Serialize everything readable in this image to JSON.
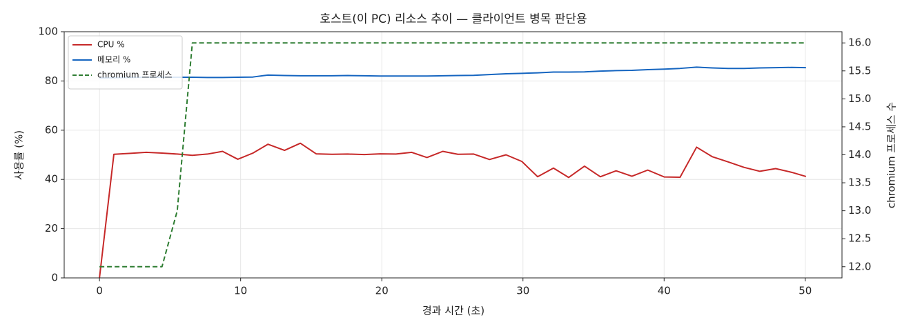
{
  "chart_data": {
    "type": "line",
    "title": "호스트(이 PC) 리소스 추이 — 클라이언트 병목 판단용",
    "xlabel": "경과 시간 (초)",
    "ylabel": "사용률 (%)",
    "y2label": "chromium 프로세스 수",
    "x": [
      0,
      1.02,
      2.19,
      3.31,
      4.43,
      5.51,
      6.58,
      7.65,
      8.72,
      9.8,
      10.87,
      11.94,
      13.11,
      14.23,
      15.35,
      16.47,
      17.59,
      18.76,
      19.88,
      21.0,
      22.12,
      23.2,
      24.32,
      25.39,
      26.51,
      27.63,
      28.8,
      29.92,
      31.04,
      32.16,
      33.24,
      34.36,
      35.48,
      36.6,
      37.72,
      38.84,
      40.01,
      41.13,
      42.3,
      43.42,
      44.54,
      45.66,
      46.78,
      47.9,
      49.03,
      50.05
    ],
    "series": [
      {
        "name": "CPU %",
        "color": "#c62828",
        "values": [
          0,
          50.2,
          50.6,
          51.0,
          50.7,
          50.3,
          49.8,
          50.3,
          51.4,
          48.2,
          50.7,
          54.3,
          51.8,
          54.7,
          50.4,
          50.2,
          50.3,
          50.1,
          50.4,
          50.3,
          51.0,
          48.9,
          51.4,
          50.2,
          50.3,
          48.1,
          50.0,
          47.3,
          41.1,
          44.6,
          40.8,
          45.4,
          41.1,
          43.5,
          41.3,
          43.8,
          41.0,
          40.9,
          53.1,
          49.2,
          47.1,
          44.9,
          43.3,
          44.4,
          42.9,
          41.2
        ]
      },
      {
        "name": "메모리 %",
        "color": "#1565c0",
        "values": [
          81.2,
          81.3,
          81.4,
          81.5,
          81.5,
          81.5,
          81.5,
          81.4,
          81.4,
          81.5,
          81.6,
          82.4,
          82.2,
          82.1,
          82.1,
          82.1,
          82.2,
          82.1,
          82.0,
          82.0,
          82.0,
          82.0,
          82.1,
          82.2,
          82.3,
          82.6,
          82.9,
          83.1,
          83.3,
          83.6,
          83.6,
          83.7,
          84.0,
          84.2,
          84.3,
          84.6,
          84.8,
          85.1,
          85.6,
          85.3,
          85.1,
          85.1,
          85.3,
          85.4,
          85.5,
          85.4
        ]
      },
      {
        "name": "chromium 프로세스",
        "color": "#2e7d32",
        "dashed": true,
        "axis": "y2",
        "values": [
          12,
          12,
          12,
          12,
          12,
          13,
          16,
          16,
          16,
          16,
          16,
          16,
          16,
          16,
          16,
          16,
          16,
          16,
          16,
          16,
          16,
          16,
          16,
          16,
          16,
          16,
          16,
          16,
          16,
          16,
          16,
          16,
          16,
          16,
          16,
          16,
          16,
          16,
          16,
          16,
          16,
          16,
          16,
          16,
          16,
          16
        ]
      }
    ],
    "xlim": [
      -2.5,
      52.6
    ],
    "xticks": [
      0,
      10,
      20,
      30,
      40,
      50
    ],
    "ylim": [
      0,
      100
    ],
    "yticks": [
      0,
      20,
      40,
      60,
      80,
      100
    ],
    "y2lim": [
      11.8,
      16.2
    ],
    "y2ticks": [
      {
        "value": 12,
        "label": "12.0"
      },
      12.5,
      {
        "value": 13,
        "label": "13.0"
      },
      13.5,
      {
        "value": 14,
        "label": "14.0"
      },
      14.5,
      {
        "value": 15,
        "label": "15.0"
      },
      15.5,
      {
        "value": 16,
        "label": "16.0"
      }
    ],
    "grid": true,
    "legend": "upper left"
  }
}
